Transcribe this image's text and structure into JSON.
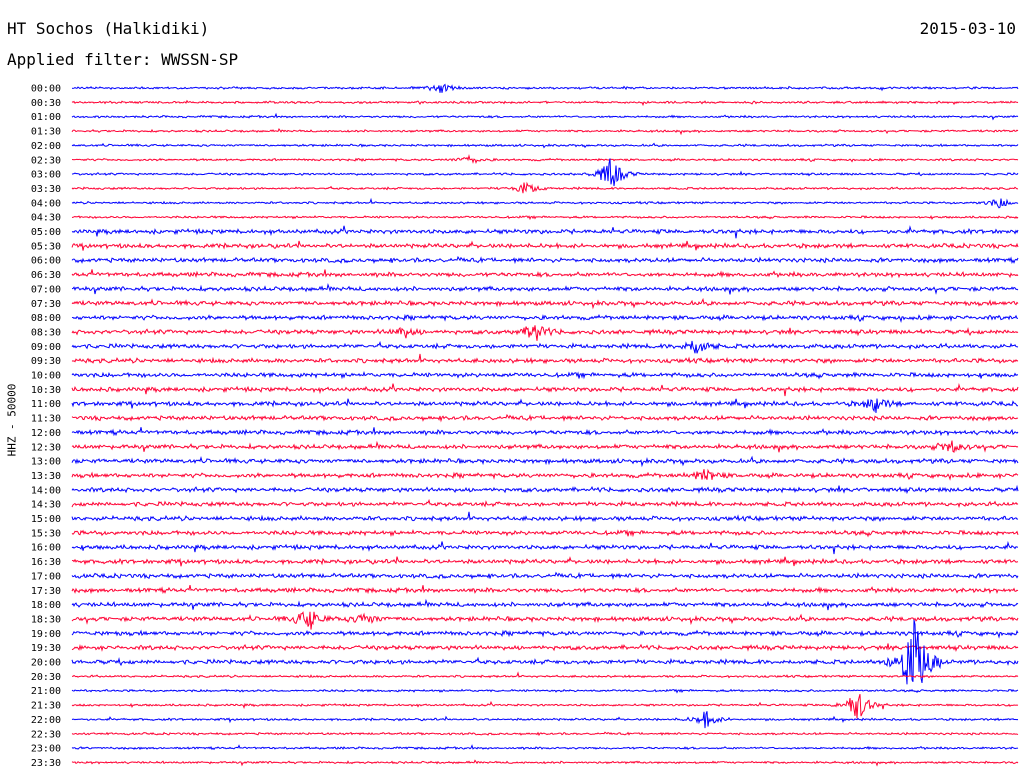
{
  "header": {
    "station": "HT Sochos (Halkidiki)",
    "date": "2015-03-10",
    "filter": "Applied filter: WWSSN-SP"
  },
  "chart_data": {
    "type": "line",
    "ylabel": "HHZ - 50000",
    "colors": [
      "#0000ff",
      "#ff0033"
    ],
    "rows": [
      "00:00",
      "00:30",
      "01:00",
      "01:30",
      "02:00",
      "02:30",
      "03:00",
      "03:30",
      "04:00",
      "04:30",
      "05:00",
      "05:30",
      "06:00",
      "06:30",
      "07:00",
      "07:30",
      "08:00",
      "08:30",
      "09:00",
      "09:30",
      "10:00",
      "10:30",
      "11:00",
      "11:30",
      "12:00",
      "12:30",
      "13:00",
      "13:30",
      "14:00",
      "14:30",
      "15:00",
      "15:30",
      "16:00",
      "16:30",
      "17:00",
      "17:30",
      "18:00",
      "18:30",
      "19:00",
      "19:30",
      "20:00",
      "20:30",
      "21:00",
      "21:30",
      "22:00",
      "22:30",
      "23:00",
      "23:30"
    ],
    "events": [
      {
        "row": "00:00",
        "pos": 0.39,
        "amp": 5
      },
      {
        "row": "03:00",
        "pos": 0.57,
        "amp": 18
      },
      {
        "row": "02:30",
        "pos": 0.42,
        "amp": 4
      },
      {
        "row": "03:30",
        "pos": 0.48,
        "amp": 6
      },
      {
        "row": "04:00",
        "pos": 0.98,
        "amp": 5
      },
      {
        "row": "08:30",
        "pos": 0.49,
        "amp": 10
      },
      {
        "row": "08:30",
        "pos": 0.35,
        "amp": 6
      },
      {
        "row": "09:00",
        "pos": 0.66,
        "amp": 9
      },
      {
        "row": "11:00",
        "pos": 0.85,
        "amp": 8
      },
      {
        "row": "12:30",
        "pos": 0.93,
        "amp": 6
      },
      {
        "row": "13:30",
        "pos": 0.67,
        "amp": 7
      },
      {
        "row": "18:30",
        "pos": 0.25,
        "amp": 12
      },
      {
        "row": "18:30",
        "pos": 0.31,
        "amp": 6
      },
      {
        "row": "20:00",
        "pos": 0.89,
        "amp": 45
      },
      {
        "row": "21:30",
        "pos": 0.83,
        "amp": 18
      },
      {
        "row": "22:00",
        "pos": 0.67,
        "amp": 9
      }
    ]
  }
}
